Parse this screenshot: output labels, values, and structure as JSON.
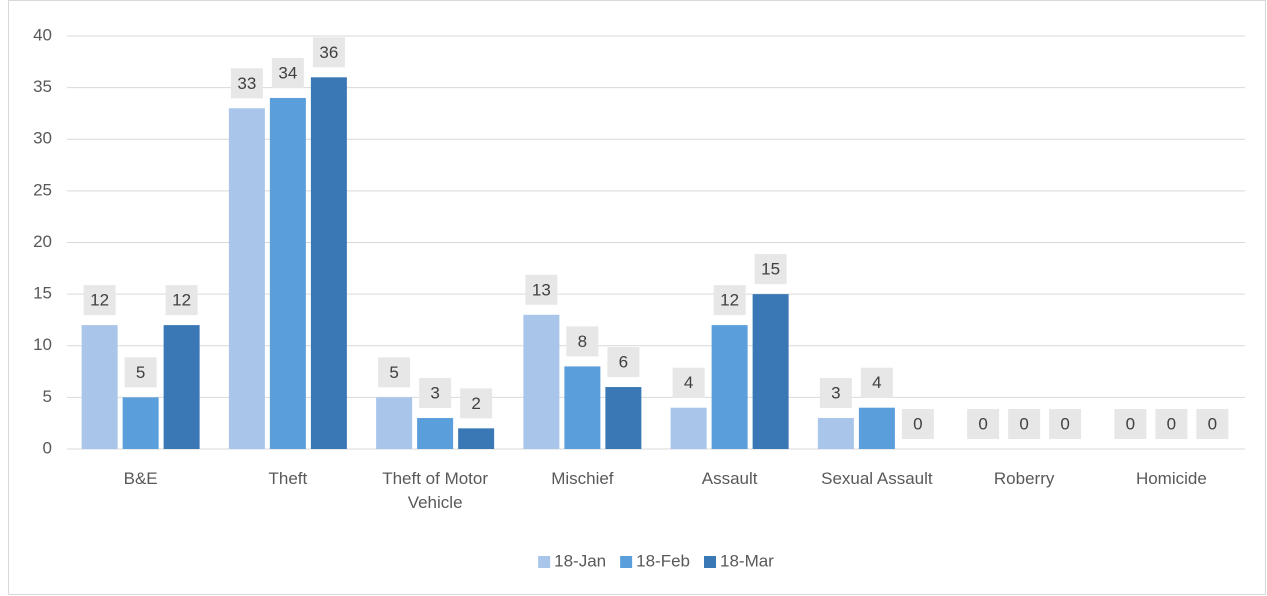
{
  "chart_data": {
    "type": "bar",
    "categories": [
      "B&E",
      "Theft",
      "Theft of Motor Vehicle",
      "Mischief",
      "Assault",
      "Sexual Assault",
      "Roberry",
      "Homicide"
    ],
    "series": [
      {
        "name": "18-Jan",
        "color": "#a9c5e9",
        "values": [
          12,
          33,
          5,
          13,
          4,
          3,
          0,
          0
        ]
      },
      {
        "name": "18-Feb",
        "color": "#5a9fdc",
        "values": [
          5,
          34,
          3,
          8,
          12,
          4,
          0,
          0
        ]
      },
      {
        "name": "18-Mar",
        "color": "#3a78b5",
        "values": [
          12,
          36,
          2,
          6,
          15,
          0,
          0,
          0
        ]
      }
    ],
    "ylim": [
      0,
      40
    ],
    "yticks": [
      0,
      5,
      10,
      15,
      20,
      25,
      30,
      35,
      40
    ],
    "grid": true,
    "legend": "bottom"
  }
}
